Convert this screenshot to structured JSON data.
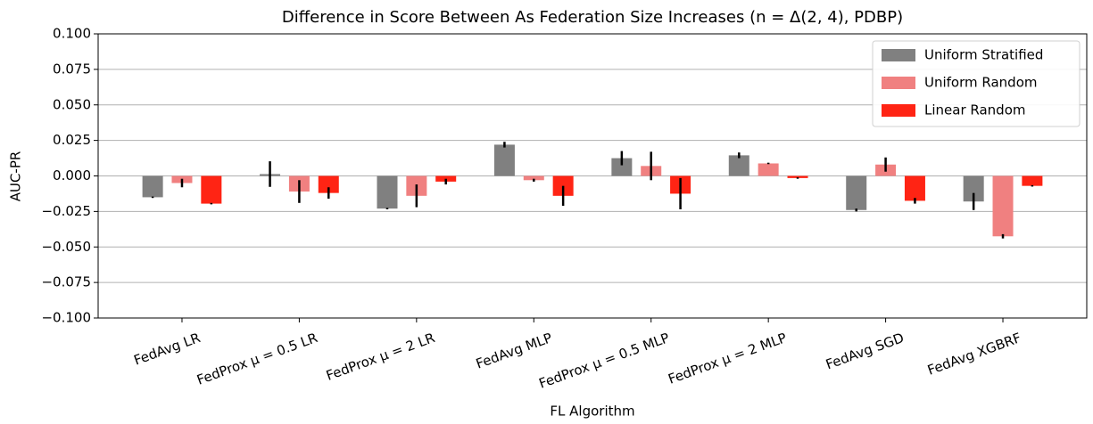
{
  "chart_data": {
    "type": "bar",
    "title": "Difference in Score Between As Federation Size Increases (n = Δ(2, 4), PDBP)",
    "x_label": "FL Algorithm",
    "y_label": "AUC-PR",
    "categories": [
      "FedAvg LR",
      "FedProx μ = 0.5 LR",
      "FedProx μ = 2 LR",
      "FedAvg MLP",
      "FedProx μ = 0.5 MLP",
      "FedProx μ = 2 MLP",
      "FedAvg SGD",
      "FedAvg XGBRF"
    ],
    "series": [
      {
        "name": "Uniform Stratified",
        "color": "#808080",
        "values": [
          -0.015,
          0.0013,
          -0.023,
          0.022,
          0.0125,
          0.0145,
          -0.024,
          -0.018
        ],
        "errors": [
          0.0005,
          0.009,
          0.0005,
          0.002,
          0.005,
          0.002,
          0.001,
          0.006
        ]
      },
      {
        "name": "Uniform Random",
        "color": "#f08080",
        "values": [
          -0.005,
          -0.011,
          -0.014,
          -0.003,
          0.007,
          0.0088,
          0.008,
          -0.0425
        ],
        "errors": [
          0.003,
          0.008,
          0.008,
          0.001,
          0.01,
          0.0005,
          0.005,
          0.0015
        ]
      },
      {
        "name": "Linear Random",
        "color": "#ff2414",
        "values": [
          -0.0195,
          -0.012,
          -0.004,
          -0.014,
          -0.0125,
          -0.0015,
          -0.0175,
          -0.007
        ],
        "errors": [
          0.0005,
          0.004,
          0.002,
          0.007,
          0.011,
          0.0005,
          0.002,
          0.0005
        ]
      }
    ],
    "ylim": [
      -0.1,
      0.1
    ],
    "yticks": [
      {
        "value": -0.1,
        "label": "−0.100"
      },
      {
        "value": -0.075,
        "label": "−0.075"
      },
      {
        "value": -0.05,
        "label": "−0.050"
      },
      {
        "value": -0.025,
        "label": "−0.025"
      },
      {
        "value": 0,
        "label": "0.000"
      },
      {
        "value": 0.025,
        "label": "0.025"
      },
      {
        "value": 0.05,
        "label": "0.050"
      },
      {
        "value": 0.075,
        "label": "0.075"
      },
      {
        "value": 0.1,
        "label": "0.100"
      }
    ],
    "grid": true,
    "legend": "upper right"
  }
}
